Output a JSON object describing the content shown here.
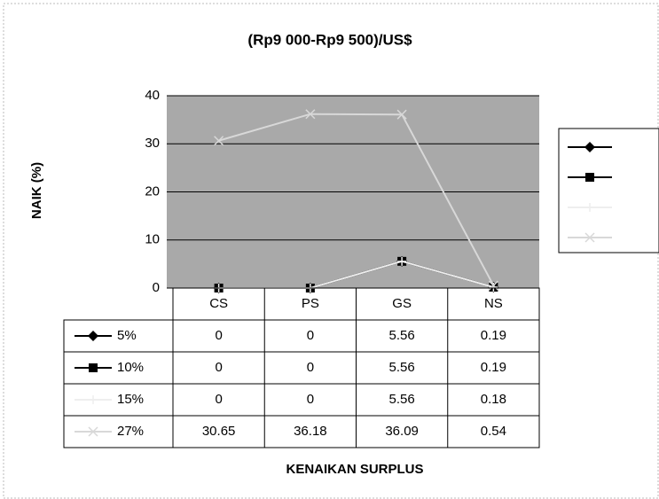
{
  "chart_data": {
    "type": "line",
    "title": "(Rp9 000-Rp9 500)/US$",
    "y_label": "NAIK (%)",
    "x_label": "KENAIKAN SURPLUS",
    "categories": [
      "CS",
      "PS",
      "GS",
      "NS"
    ],
    "series": [
      {
        "name": "5%",
        "color": "#000000",
        "marker": "diamond",
        "values": [
          0,
          0,
          5.56,
          0.19
        ]
      },
      {
        "name": "10%",
        "color": "#000000",
        "marker": "square",
        "values": [
          0,
          0,
          5.56,
          0.19
        ]
      },
      {
        "name": "15%",
        "color": "#eeeeee",
        "marker": "plus",
        "values": [
          0,
          0,
          5.56,
          0.18
        ]
      },
      {
        "name": "27%",
        "color": "#d8d8d8",
        "marker": "x",
        "values": [
          30.65,
          36.18,
          36.09,
          0.54
        ]
      }
    ],
    "ylim": [
      0,
      40
    ],
    "yticks": [
      0,
      10,
      20,
      30,
      40
    ],
    "grid": true
  }
}
